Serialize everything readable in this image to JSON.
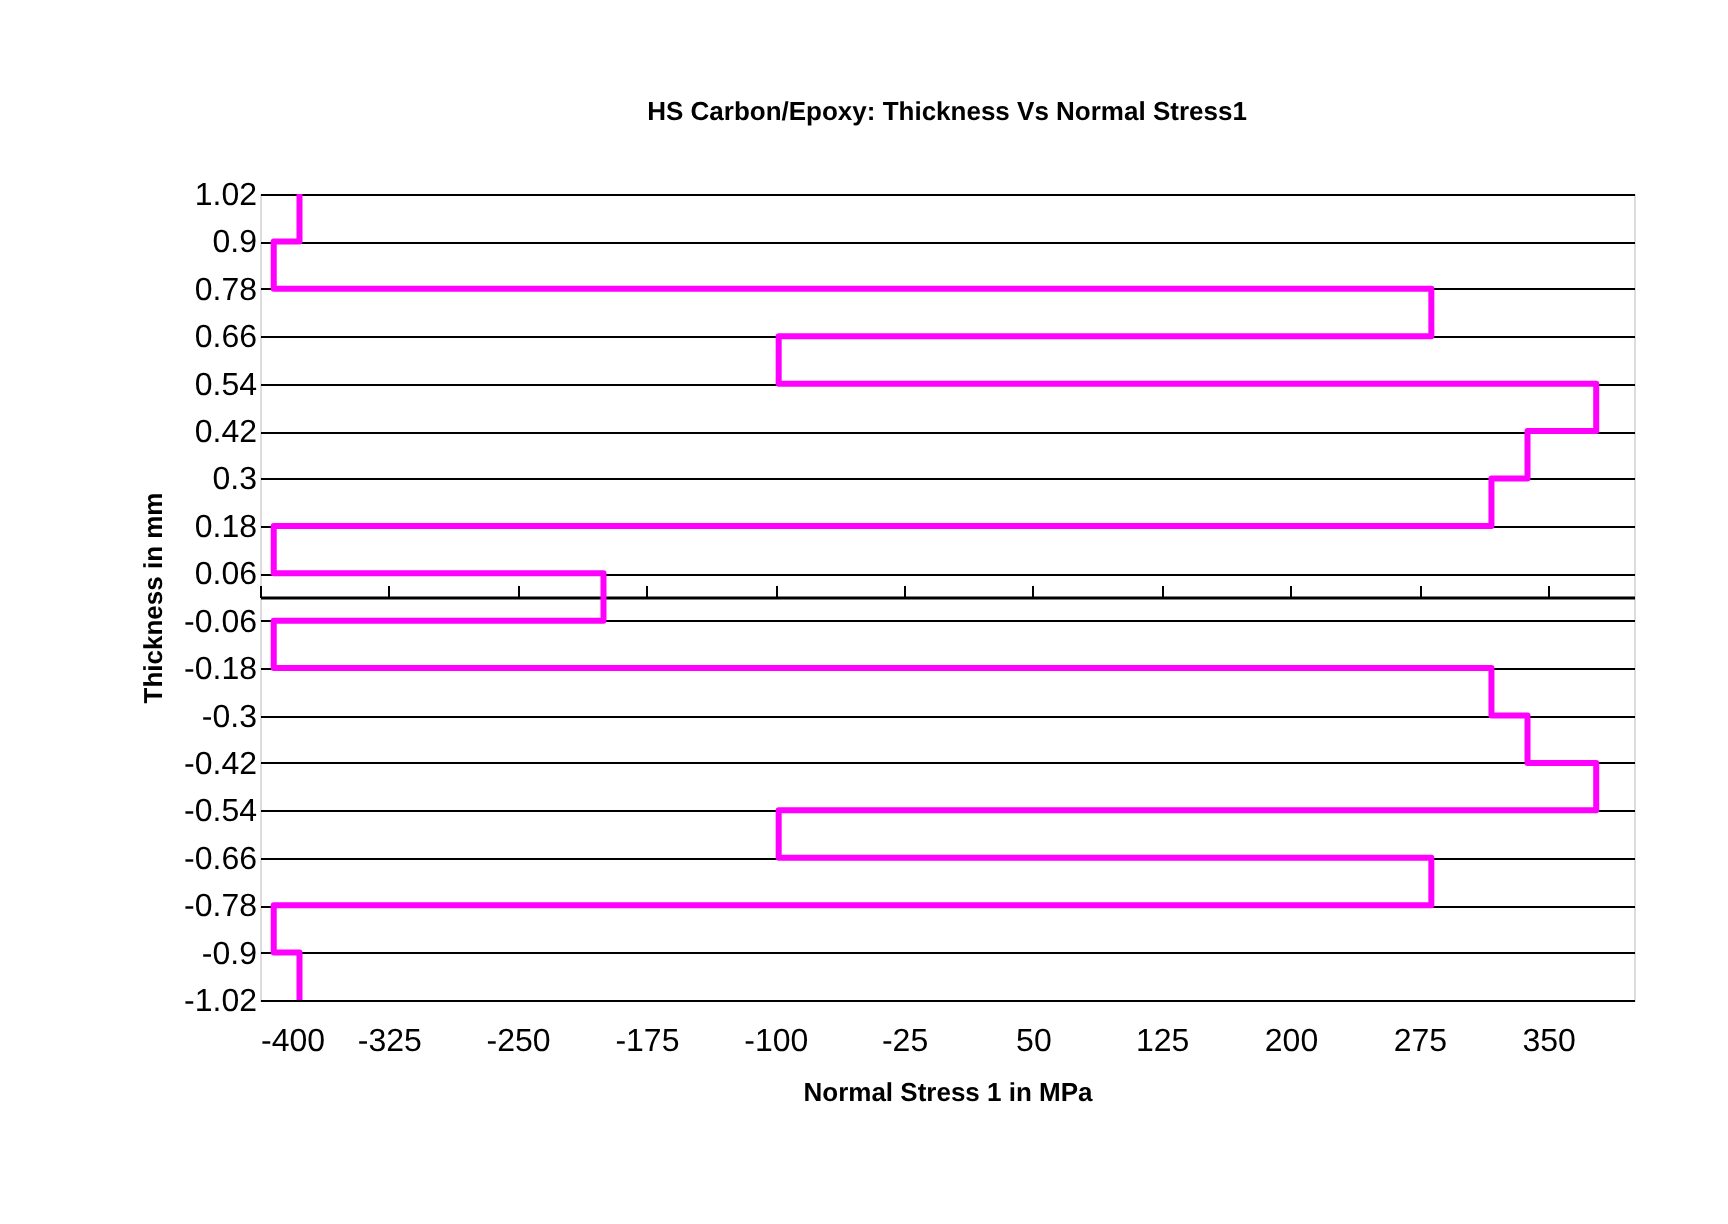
{
  "chart_data": {
    "type": "line",
    "title": "HS Carbon/Epoxy: Thickness Vs Normal Stress1",
    "xlabel": "Normal Stress 1 in MPa",
    "ylabel": "Thickness in mm",
    "series": [
      {
        "color": "#ff00ff",
        "x": [
          -377,
          -377,
          -392,
          -392,
          282,
          282,
          -98,
          -98,
          378,
          378,
          338,
          338,
          317,
          317,
          -392,
          -392,
          -200,
          -200,
          -392,
          -392,
          317,
          317,
          338,
          338,
          378,
          378,
          -98,
          -98,
          282,
          282,
          -392,
          -392,
          -377,
          -377
        ],
        "values": [
          1.02,
          0.9,
          0.9,
          0.78,
          0.78,
          0.66,
          0.66,
          0.54,
          0.54,
          0.42,
          0.42,
          0.3,
          0.3,
          0.18,
          0.18,
          0.06,
          0.06,
          -0.06,
          -0.06,
          -0.18,
          -0.18,
          -0.3,
          -0.3,
          -0.42,
          -0.42,
          -0.54,
          -0.54,
          -0.66,
          -0.66,
          -0.78,
          -0.78,
          -0.9,
          -0.9,
          -1.02
        ]
      }
    ],
    "xlim": [
      -400,
      400
    ],
    "xticks": [
      -400,
      -325,
      -250,
      -175,
      -100,
      -25,
      50,
      125,
      200,
      275,
      350
    ],
    "ylim": [
      -1.02,
      1.02
    ],
    "yticks": [
      1.02,
      0.9,
      0.78,
      0.66,
      0.54,
      0.42,
      0.3,
      0.18,
      0.06,
      -0.06,
      -0.18,
      -0.3,
      -0.42,
      -0.54,
      -0.66,
      -0.78,
      -0.9,
      -1.02
    ],
    "grid": "y",
    "legend": false,
    "marker": "none",
    "line_style": "solid"
  }
}
